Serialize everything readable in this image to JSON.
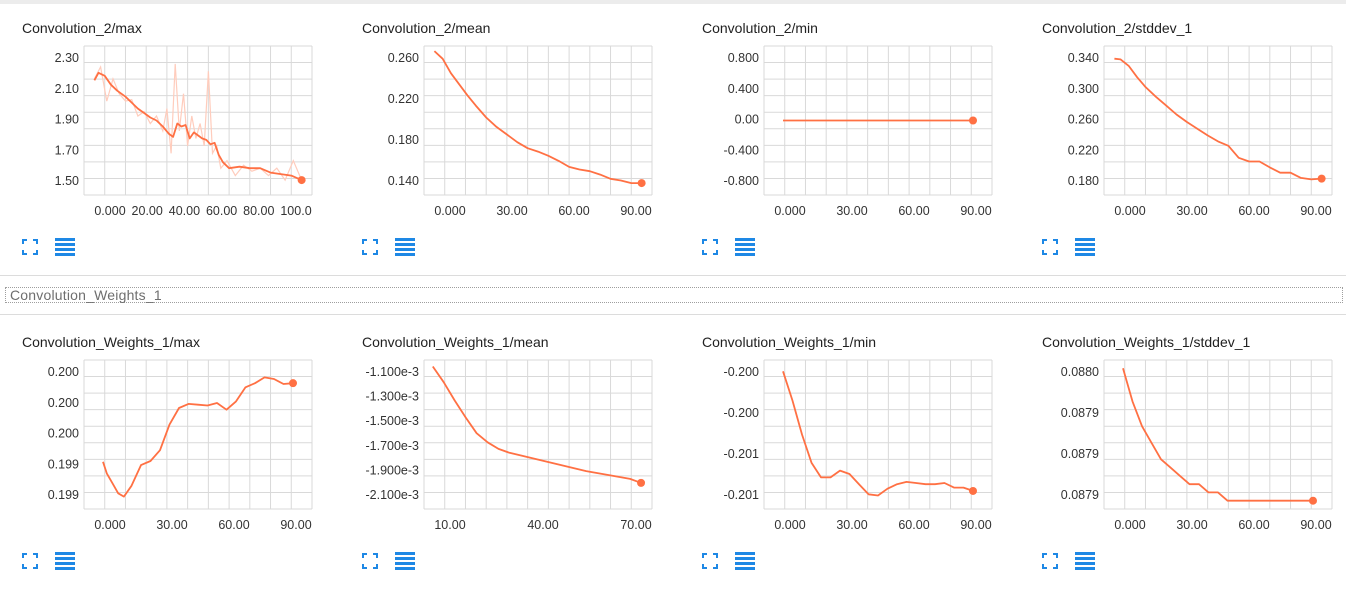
{
  "section": {
    "title": "Convolution_Weights_1"
  },
  "colors": {
    "line": "#ff7043",
    "smooth_raw": "#ffccbc",
    "grid": "#d9d9d9",
    "icon": "#1e88e5"
  },
  "icons": {
    "expand": "fullscreen-icon",
    "data": "data-table-icon"
  },
  "cards": [
    {
      "title": "Convolution_2/max",
      "xticks": [
        "0.000",
        "20.00",
        "40.00",
        "60.00",
        "80.00",
        "100.0"
      ],
      "yticks": [
        "2.30",
        "2.10",
        "1.90",
        "1.70",
        "1.50"
      ]
    },
    {
      "title": "Convolution_2/mean",
      "xticks": [
        "0.000",
        "30.00",
        "60.00",
        "90.00"
      ],
      "yticks": [
        "0.260",
        "0.220",
        "0.180",
        "0.140"
      ]
    },
    {
      "title": "Convolution_2/min",
      "xticks": [
        "0.000",
        "30.00",
        "60.00",
        "90.00"
      ],
      "yticks": [
        "0.800",
        "0.400",
        "0.00",
        "-0.400",
        "-0.800"
      ]
    },
    {
      "title": "Convolution_2/stddev_1",
      "xticks": [
        "0.000",
        "30.00",
        "60.00",
        "90.00"
      ],
      "yticks": [
        "0.340",
        "0.300",
        "0.260",
        "0.220",
        "0.180"
      ]
    },
    {
      "title": "Convolution_Weights_1/max",
      "xticks": [
        "0.000",
        "30.00",
        "60.00",
        "90.00"
      ],
      "yticks": [
        "0.200",
        "0.200",
        "0.200",
        "0.199",
        "0.199"
      ]
    },
    {
      "title": "Convolution_Weights_1/mean",
      "xticks": [
        "10.00",
        "40.00",
        "70.00"
      ],
      "yticks": [
        "-1.100e-3",
        "-1.300e-3",
        "-1.500e-3",
        "-1.700e-3",
        "-1.900e-3",
        "-2.100e-3"
      ]
    },
    {
      "title": "Convolution_Weights_1/min",
      "xticks": [
        "0.000",
        "30.00",
        "60.00",
        "90.00"
      ],
      "yticks": [
        "-0.200",
        "-0.200",
        "-0.201",
        "-0.201"
      ]
    },
    {
      "title": "Convolution_Weights_1/stddev_1",
      "xticks": [
        "0.000",
        "30.00",
        "60.00",
        "90.00"
      ],
      "yticks": [
        "0.0880",
        "0.0879",
        "0.0879",
        "0.0879"
      ]
    }
  ],
  "chart_data": [
    {
      "type": "line",
      "title": "Convolution_2/max",
      "xlim": [
        -5,
        105
      ],
      "ylim": [
        1.42,
        2.42
      ],
      "x": [
        0,
        2,
        5,
        8,
        11,
        15,
        18,
        21,
        24,
        27,
        30,
        33,
        36,
        38,
        40,
        42,
        44,
        46,
        48,
        50,
        52,
        54,
        56,
        58,
        60,
        62,
        65,
        70,
        75,
        80,
        85,
        90,
        95,
        100
      ],
      "y": [
        2.19,
        2.24,
        2.22,
        2.16,
        2.12,
        2.08,
        2.04,
        2.0,
        1.97,
        1.94,
        1.92,
        1.88,
        1.83,
        1.81,
        1.9,
        1.88,
        1.89,
        1.8,
        1.84,
        1.82,
        1.8,
        1.79,
        1.76,
        1.77,
        1.69,
        1.64,
        1.6,
        1.61,
        1.6,
        1.6,
        1.57,
        1.56,
        1.55,
        1.52
      ],
      "raw_x": [
        0,
        3,
        6,
        9,
        12,
        15,
        18,
        21,
        24,
        27,
        30,
        33,
        35,
        37,
        39,
        41,
        43,
        45,
        47,
        49,
        51,
        53,
        55,
        57,
        59,
        61,
        64,
        68,
        72,
        76,
        80,
        84,
        88,
        92,
        96,
        100
      ],
      "raw_y": [
        2.2,
        2.28,
        2.05,
        2.2,
        2.1,
        2.05,
        2.06,
        1.95,
        1.98,
        1.9,
        1.95,
        1.85,
        2.0,
        1.7,
        2.3,
        1.85,
        2.1,
        1.75,
        1.95,
        1.8,
        1.9,
        1.75,
        2.25,
        1.7,
        1.75,
        1.6,
        1.65,
        1.55,
        1.62,
        1.58,
        1.6,
        1.55,
        1.6,
        1.52,
        1.65,
        1.52
      ]
    },
    {
      "type": "line",
      "title": "Convolution_2/mean",
      "xlim": [
        -5,
        105
      ],
      "ylim": [
        0.115,
        0.29
      ],
      "x": [
        0,
        4,
        8,
        12,
        16,
        20,
        25,
        30,
        35,
        40,
        45,
        50,
        55,
        60,
        65,
        70,
        75,
        80,
        85,
        90,
        95,
        100
      ],
      "y": [
        0.284,
        0.275,
        0.258,
        0.245,
        0.232,
        0.22,
        0.206,
        0.195,
        0.186,
        0.177,
        0.17,
        0.166,
        0.161,
        0.155,
        0.148,
        0.145,
        0.143,
        0.139,
        0.134,
        0.132,
        0.129,
        0.129
      ]
    },
    {
      "type": "line",
      "title": "Convolution_2/min",
      "xlim": [
        -10,
        110
      ],
      "ylim": [
        -1.0,
        1.0
      ],
      "x": [
        0,
        100
      ],
      "y": [
        0,
        0
      ]
    },
    {
      "type": "line",
      "title": "Convolution_2/stddev_1",
      "xlim": [
        -5,
        105
      ],
      "ylim": [
        0.16,
        0.36
      ],
      "x": [
        0,
        3,
        7,
        11,
        15,
        20,
        25,
        30,
        35,
        40,
        45,
        50,
        55,
        60,
        65,
        70,
        75,
        80,
        85,
        90,
        95,
        100
      ],
      "y": [
        0.343,
        0.342,
        0.333,
        0.318,
        0.305,
        0.292,
        0.28,
        0.268,
        0.258,
        0.249,
        0.24,
        0.232,
        0.226,
        0.21,
        0.205,
        0.205,
        0.197,
        0.19,
        0.19,
        0.183,
        0.181,
        0.182
      ]
    },
    {
      "type": "line",
      "title": "Convolution_Weights_1/max",
      "xlim": [
        -10,
        110
      ],
      "ylim": [
        0.1986,
        0.2004
      ],
      "x": [
        0,
        2,
        5,
        8,
        11,
        15,
        20,
        25,
        30,
        35,
        40,
        45,
        50,
        55,
        60,
        65,
        70,
        75,
        80,
        85,
        90,
        95,
        100
      ],
      "y": [
        0.19917,
        0.19903,
        0.19891,
        0.19879,
        0.19875,
        0.19888,
        0.19913,
        0.19918,
        0.19931,
        0.19962,
        0.19982,
        0.19987,
        0.19986,
        0.19985,
        0.19988,
        0.1998,
        0.1999,
        0.20007,
        0.20012,
        0.20019,
        0.20017,
        0.20011,
        0.20012
      ]
    },
    {
      "type": "line",
      "title": "Convolution_Weights_1/mean",
      "xlim": [
        -4,
        100
      ],
      "ylim": [
        -0.00219,
        -0.00105
      ],
      "x": [
        0,
        5,
        10,
        15,
        20,
        25,
        30,
        35,
        40,
        50,
        60,
        70,
        80,
        90,
        95
      ],
      "y": [
        -0.0011,
        -0.00122,
        -0.00136,
        -0.00149,
        -0.00161,
        -0.00168,
        -0.00173,
        -0.00176,
        -0.00178,
        -0.00182,
        -0.00186,
        -0.0019,
        -0.00193,
        -0.00196,
        -0.00199
      ]
    },
    {
      "type": "line",
      "title": "Convolution_Weights_1/min",
      "xlim": [
        -10,
        110
      ],
      "ylim": [
        -0.20116,
        -0.19984
      ],
      "x": [
        0,
        5,
        10,
        15,
        20,
        25,
        30,
        35,
        40,
        45,
        50,
        55,
        60,
        65,
        70,
        75,
        80,
        85,
        90,
        95,
        100
      ],
      "y": [
        -0.19994,
        -0.2002,
        -0.2005,
        -0.20075,
        -0.20088,
        -0.20088,
        -0.20082,
        -0.20085,
        -0.20094,
        -0.20103,
        -0.20104,
        -0.20098,
        -0.20094,
        -0.20092,
        -0.20093,
        -0.20094,
        -0.20094,
        -0.20093,
        -0.20097,
        -0.20097,
        -0.201
      ]
    },
    {
      "type": "line",
      "title": "Convolution_Weights_1/stddev_1",
      "xlim": [
        -10,
        110
      ],
      "ylim": [
        0.08786,
        0.08804
      ],
      "x": [
        0,
        5,
        10,
        15,
        20,
        25,
        30,
        35,
        40,
        45,
        50,
        55,
        60,
        65,
        70,
        75,
        80,
        85,
        90,
        95,
        100
      ],
      "y": [
        0.08803,
        0.08799,
        0.08796,
        0.08794,
        0.08792,
        0.08791,
        0.0879,
        0.08789,
        0.08789,
        0.08788,
        0.08788,
        0.08787,
        0.08787,
        0.08787,
        0.08787,
        0.08787,
        0.08787,
        0.08787,
        0.08787,
        0.08787,
        0.08787
      ]
    }
  ]
}
